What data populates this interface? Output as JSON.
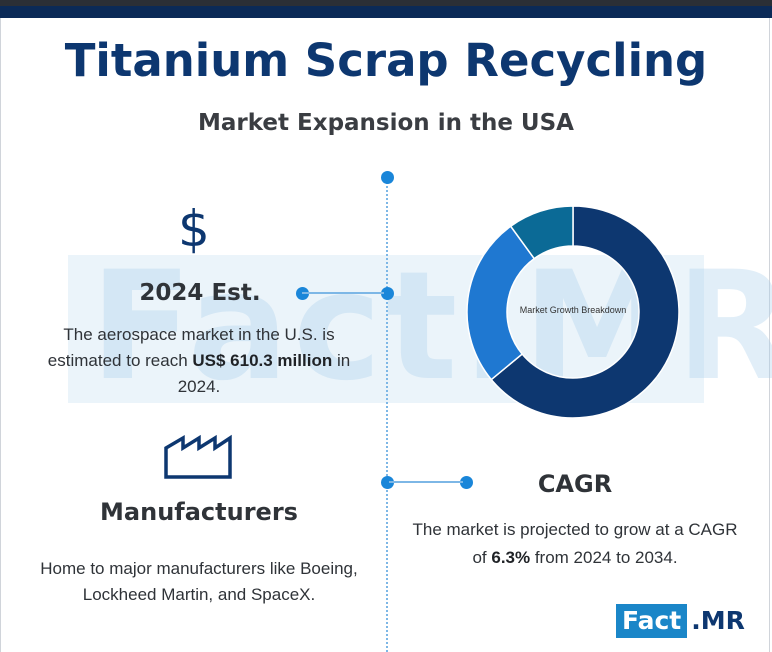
{
  "header": {
    "title": "Titanium Scrap Recycling",
    "subtitle": "Market Expansion in the USA"
  },
  "watermark": {
    "text": "Fact.MR"
  },
  "estimate": {
    "icon": "dollar-icon",
    "title": "2024 Est.",
    "text_before": "The aerospace market in the U.S. is estimated to reach ",
    "text_bold": "US$ 610.3 million",
    "text_after": " in 2024."
  },
  "manufacturers": {
    "icon": "factory-icon",
    "title": "Manufacturers",
    "text": "Home to major manufacturers like Boeing, Lockheed Martin, and SpaceX."
  },
  "cagr": {
    "title": "CAGR",
    "text_before": "The market is projected to grow at a CAGR of ",
    "text_bold": "6.3%",
    "text_after": " from 2024 to 2034."
  },
  "chart_data": {
    "type": "pie",
    "title": "Market Growth Breakdown",
    "donut": true,
    "values": [
      64,
      26,
      10
    ],
    "colors": [
      "#0d3770",
      "#1f78d1",
      "#0b6a96"
    ]
  },
  "logo": {
    "part_a": "Fact",
    "part_b": ".MR"
  },
  "colors": {
    "accent_navy": "#0d3770",
    "accent_blue": "#1a86d9"
  }
}
